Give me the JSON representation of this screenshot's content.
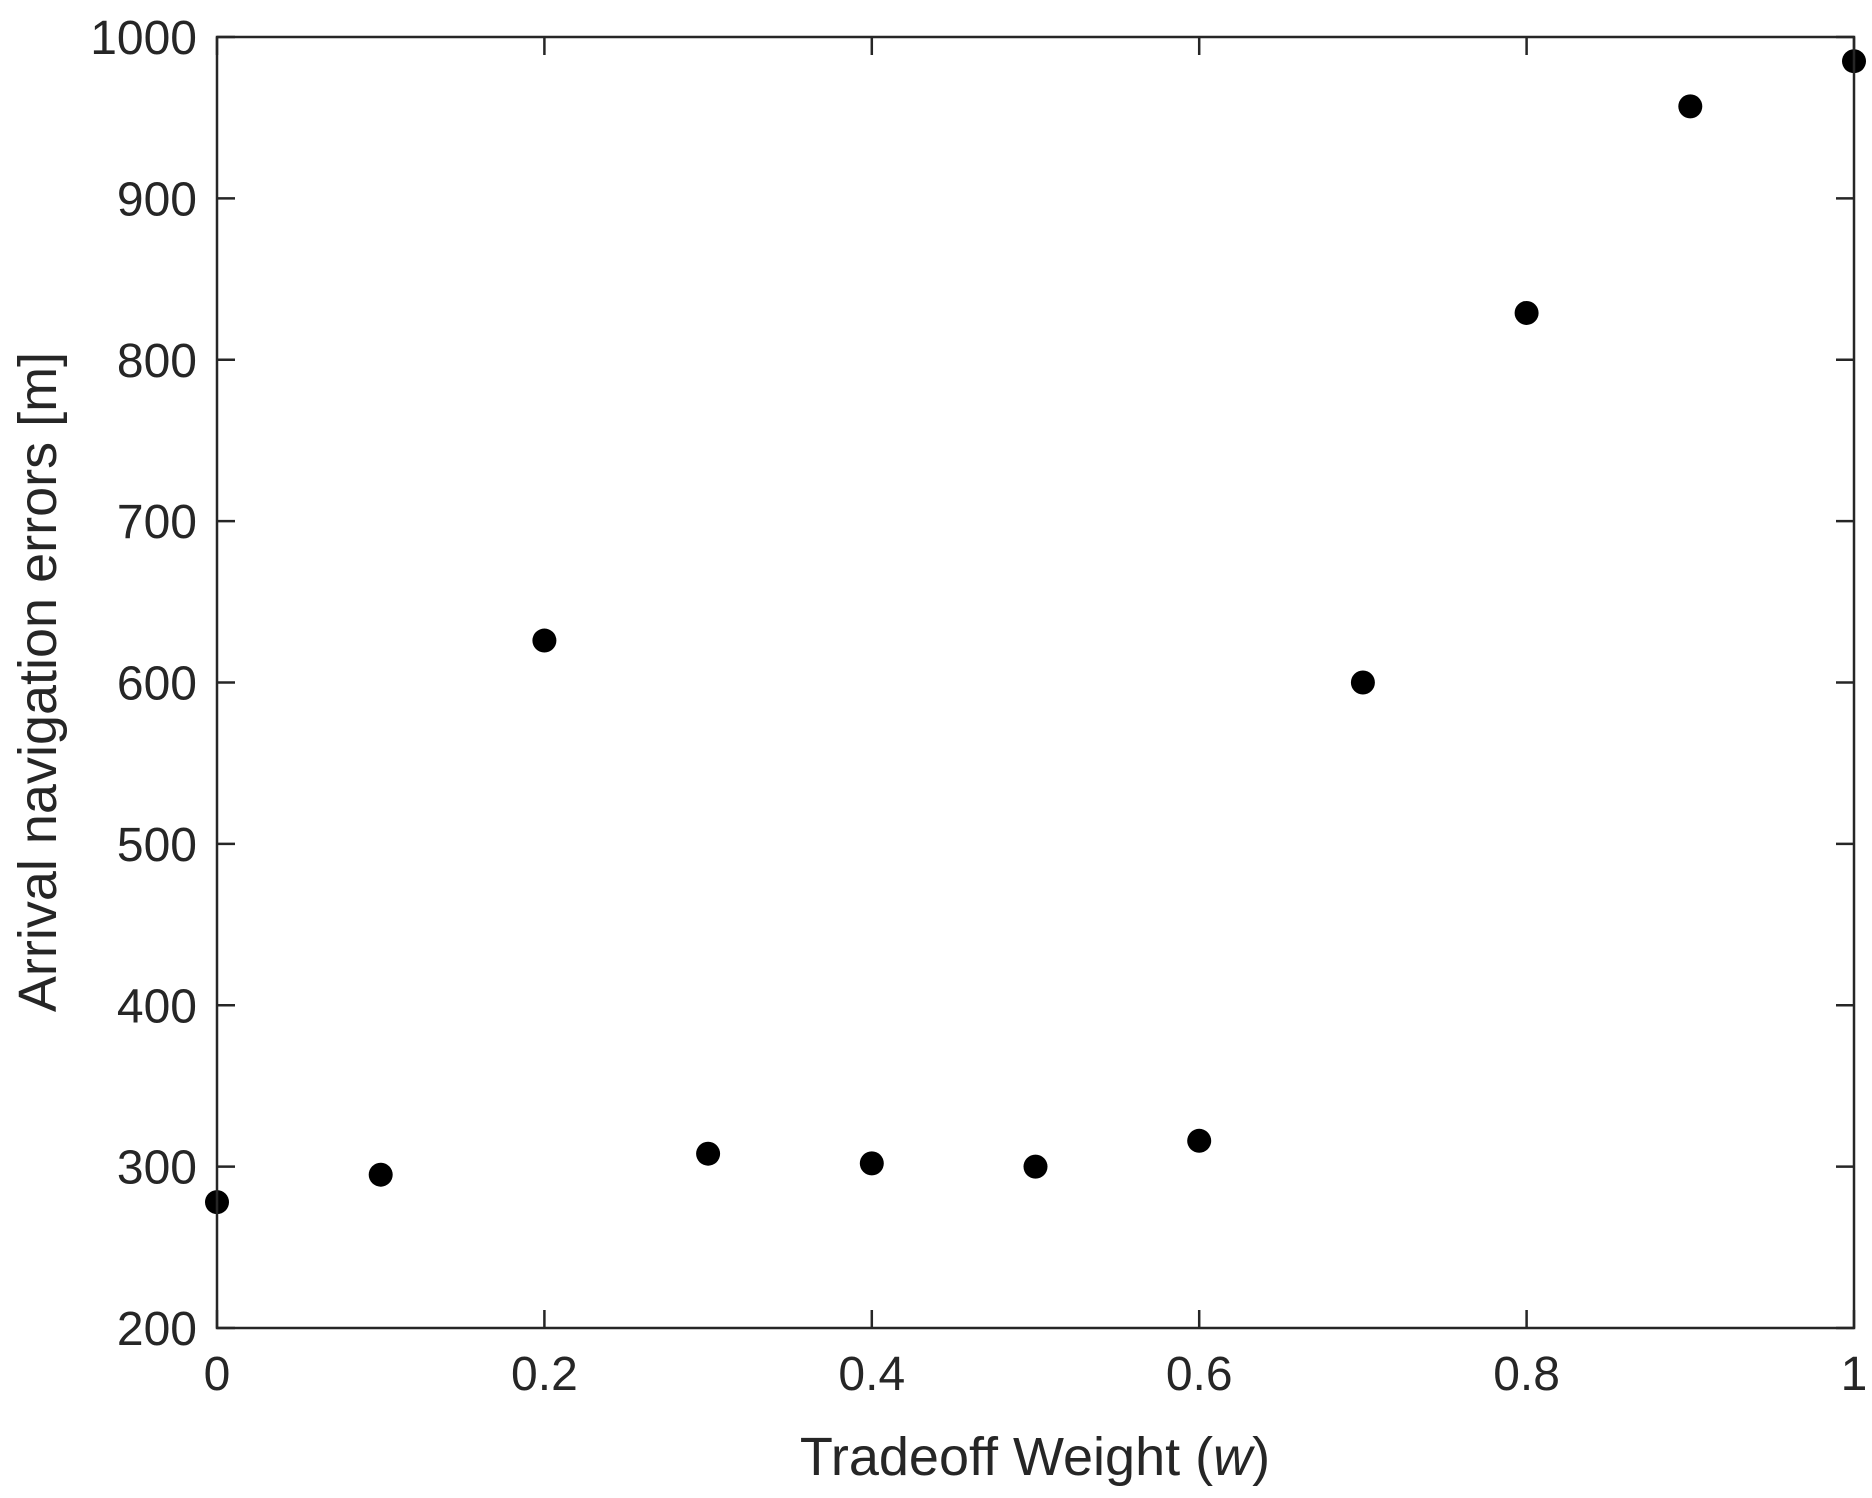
{
  "chart_data": {
    "type": "scatter",
    "title": "",
    "xlabel_text": "Tradeoff Weight (",
    "xlabel_var": "w",
    "xlabel_close": ")",
    "ylabel": "Arrival navigation errors [m]",
    "xlim": [
      0,
      1
    ],
    "ylim": [
      200,
      1000
    ],
    "xticks": [
      0,
      0.2,
      0.4,
      0.6,
      0.8,
      1
    ],
    "xtick_labels": [
      "0",
      "0.2",
      "0.4",
      "0.6",
      "0.8",
      "1"
    ],
    "yticks": [
      200,
      300,
      400,
      500,
      600,
      700,
      800,
      900,
      1000
    ],
    "ytick_labels": [
      "200",
      "300",
      "400",
      "500",
      "600",
      "700",
      "800",
      "900",
      "1000"
    ],
    "grid": false,
    "marker_color": "#000000",
    "series": [
      {
        "x": [
          0,
          0.1,
          0.2,
          0.3,
          0.4,
          0.5,
          0.6,
          0.7,
          0.8,
          0.9,
          1.0
        ],
        "y": [
          278,
          295,
          626,
          308,
          302,
          300,
          316,
          600,
          829,
          957,
          985
        ]
      }
    ]
  }
}
